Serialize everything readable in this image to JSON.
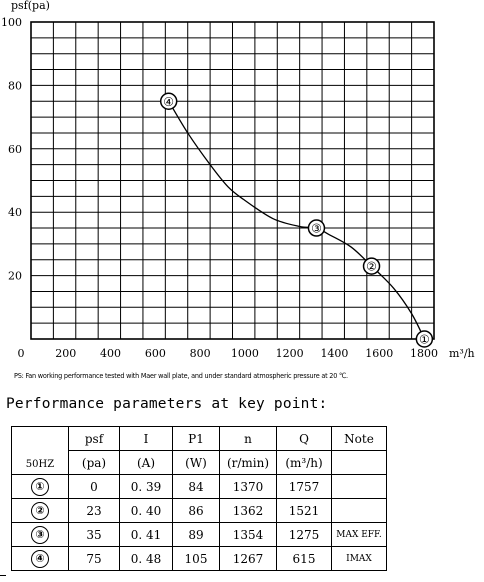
{
  "chart_data": {
    "type": "line",
    "ylabel": "psf(pa)",
    "xlabel_unit": "m³/h",
    "xlim": [
      0,
      1800
    ],
    "ylim": [
      0,
      100
    ],
    "grid": true,
    "x_ticks": [
      0,
      200,
      400,
      600,
      800,
      1000,
      1200,
      1400,
      1600,
      1800
    ],
    "y_ticks": [
      20,
      40,
      60,
      80,
      100
    ],
    "series": [
      {
        "x": [
          1757,
          1700,
          1620,
          1521,
          1430,
          1330,
          1275,
          1200,
          1080,
          950,
          880,
          800,
          700,
          615
        ],
        "y": [
          0,
          8,
          16,
          23,
          29,
          33,
          35,
          35.5,
          38,
          44,
          48,
          55,
          65,
          75
        ]
      }
    ],
    "markers": [
      {
        "label": "①",
        "x": 1757,
        "y": 0
      },
      {
        "label": "②",
        "x": 1521,
        "y": 23
      },
      {
        "label": "③",
        "x": 1275,
        "y": 35
      },
      {
        "label": "④",
        "x": 615,
        "y": 75
      }
    ]
  },
  "note": "PS: Fan working performance tested with Maer wall plate, and under standard atmospheric pressure at 20 ℃.",
  "heading": "Performance parameters at key point:",
  "table": {
    "hz": "50HZ",
    "headers": [
      "psf",
      "I",
      "P1",
      "n",
      "Q",
      "Note"
    ],
    "units": [
      "(pa)",
      "(A)",
      "(W)",
      "(r/min)",
      "(m³/h)",
      ""
    ],
    "rows": [
      {
        "point": "①",
        "cells": [
          "0",
          "0. 39",
          "84",
          "1370",
          "1757",
          ""
        ]
      },
      {
        "point": "②",
        "cells": [
          "23",
          "0. 40",
          "86",
          "1362",
          "1521",
          ""
        ]
      },
      {
        "point": "③",
        "cells": [
          "35",
          "0. 41",
          "89",
          "1354",
          "1275",
          "MAX EFF."
        ]
      },
      {
        "point": "④",
        "cells": [
          "75",
          "0. 48",
          "105",
          "1267",
          "615",
          "IMAX"
        ]
      }
    ]
  }
}
